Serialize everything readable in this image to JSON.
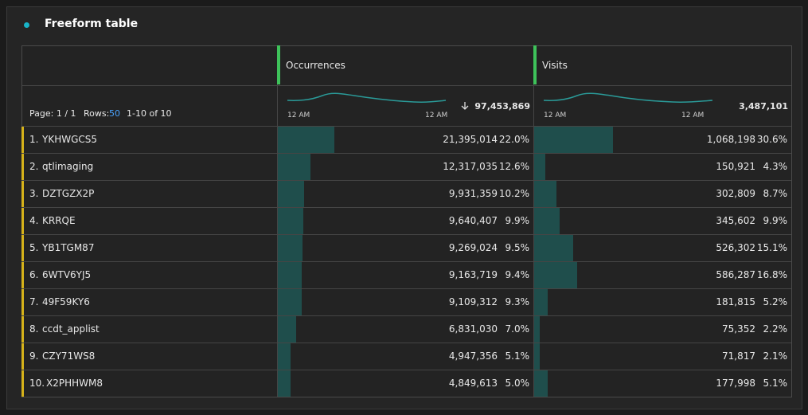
{
  "panel": {
    "title": "Freeform table"
  },
  "table": {
    "pagination": {
      "page": "Page: 1 / 1",
      "rows_label": "Rows:",
      "rows_value": "50",
      "range": "1-10 of 10"
    },
    "columns": [
      {
        "name": "Occurrences",
        "axis_start": "12 AM",
        "axis_end": "12 AM",
        "total": "97,453,869"
      },
      {
        "name": "Visits",
        "axis_start": "12 AM",
        "axis_end": "12 AM",
        "total": "3,487,101"
      }
    ],
    "rows": [
      {
        "rank": "1.",
        "name": "YKHWGCS5",
        "cells": [
          {
            "count": "21,395,014",
            "share": {
              "value": 22.0,
              "label": "22.0%"
            }
          },
          {
            "count": "1,068,198",
            "share": {
              "value": 30.6,
              "label": "30.6%"
            }
          }
        ]
      },
      {
        "rank": "2.",
        "name": "qtlimaging",
        "cells": [
          {
            "count": "12,317,035",
            "share": {
              "value": 12.6,
              "label": "12.6%"
            }
          },
          {
            "count": "150,921",
            "share": {
              "value": 4.3,
              "label": "4.3%"
            }
          }
        ]
      },
      {
        "rank": "3.",
        "name": "DZTGZX2P",
        "cells": [
          {
            "count": "9,931,359",
            "share": {
              "value": 10.2,
              "label": "10.2%"
            }
          },
          {
            "count": "302,809",
            "share": {
              "value": 8.7,
              "label": "8.7%"
            }
          }
        ]
      },
      {
        "rank": "4.",
        "name": "KRRQE",
        "cells": [
          {
            "count": "9,640,407",
            "share": {
              "value": 9.9,
              "label": "9.9%"
            }
          },
          {
            "count": "345,602",
            "share": {
              "value": 9.9,
              "label": "9.9%"
            }
          }
        ]
      },
      {
        "rank": "5.",
        "name": "YB1TGM87",
        "cells": [
          {
            "count": "9,269,024",
            "share": {
              "value": 9.5,
              "label": "9.5%"
            }
          },
          {
            "count": "526,302",
            "share": {
              "value": 15.1,
              "label": "15.1%"
            }
          }
        ]
      },
      {
        "rank": "6.",
        "name": "6WTV6YJ5",
        "cells": [
          {
            "count": "9,163,719",
            "share": {
              "value": 9.4,
              "label": "9.4%"
            }
          },
          {
            "count": "586,287",
            "share": {
              "value": 16.8,
              "label": "16.8%"
            }
          }
        ]
      },
      {
        "rank": "7.",
        "name": "49F59KY6",
        "cells": [
          {
            "count": "9,109,312",
            "share": {
              "value": 9.3,
              "label": "9.3%"
            }
          },
          {
            "count": "181,815",
            "share": {
              "value": 5.2,
              "label": "5.2%"
            }
          }
        ]
      },
      {
        "rank": "8.",
        "name": "ccdt_applist",
        "cells": [
          {
            "count": "6,831,030",
            "share": {
              "value": 7.0,
              "label": "7.0%"
            }
          },
          {
            "count": "75,352",
            "share": {
              "value": 2.2,
              "label": "2.2%"
            }
          }
        ]
      },
      {
        "rank": "9.",
        "name": "CZY71WS8",
        "cells": [
          {
            "count": "4,947,356",
            "share": {
              "value": 5.1,
              "label": "5.1%"
            }
          },
          {
            "count": "71,817",
            "share": {
              "value": 2.1,
              "label": "2.1%"
            }
          }
        ]
      },
      {
        "rank": "10.",
        "name": "X2PHHWM8",
        "cells": [
          {
            "count": "4,849,613",
            "share": {
              "value": 5.0,
              "label": "5.0%"
            }
          },
          {
            "count": "177,998",
            "share": {
              "value": 5.1,
              "label": "5.1%"
            }
          }
        ]
      }
    ]
  }
}
